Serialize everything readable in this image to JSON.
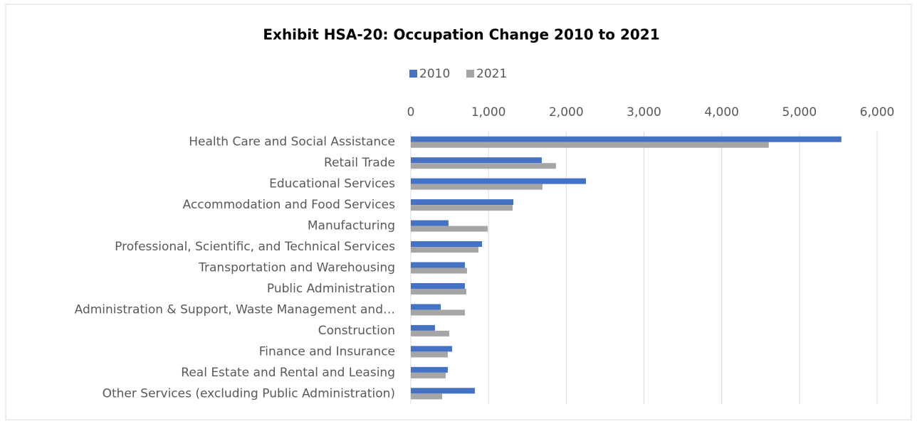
{
  "chart_data": {
    "type": "bar",
    "orientation": "horizontal",
    "title": "Exhibit HSA-20: Occupation Change 2010 to 2021",
    "categories": [
      "Health Care and Social Assistance",
      "Retail Trade",
      "Educational Services",
      "Accommodation and Food Services",
      "Manufacturing",
      "Professional, Scientific, and Technical Services",
      "Transportation and Warehousing",
      "Public Administration",
      "Administration & Support, Waste Management and…",
      "Construction",
      "Finance and Insurance",
      "Real Estate and Rental and Leasing",
      "Other Services (excluding Public Administration)"
    ],
    "series": [
      {
        "name": "2010",
        "color": "#4472c4",
        "values": [
          5540,
          1685,
          2253,
          1319,
          485,
          916,
          696,
          696,
          385,
          311,
          531,
          476,
          824
        ]
      },
      {
        "name": "2021",
        "color": "#a5a5a5",
        "values": [
          4606,
          1868,
          1694,
          1310,
          989,
          870,
          723,
          714,
          696,
          495,
          476,
          449,
          403
        ]
      }
    ],
    "xlim": [
      0,
      6000
    ],
    "xticks": [
      0,
      {
        "value": 1000,
        "label": "1,000"
      },
      {
        "value": 2000,
        "label": "2,000"
      },
      {
        "value": 3000,
        "label": "3,000"
      },
      {
        "value": 4000,
        "label": "4,000"
      },
      {
        "value": 5000,
        "label": "5,000"
      },
      {
        "value": 6000,
        "label": "6,000"
      }
    ],
    "grid": true,
    "legend": "top"
  }
}
